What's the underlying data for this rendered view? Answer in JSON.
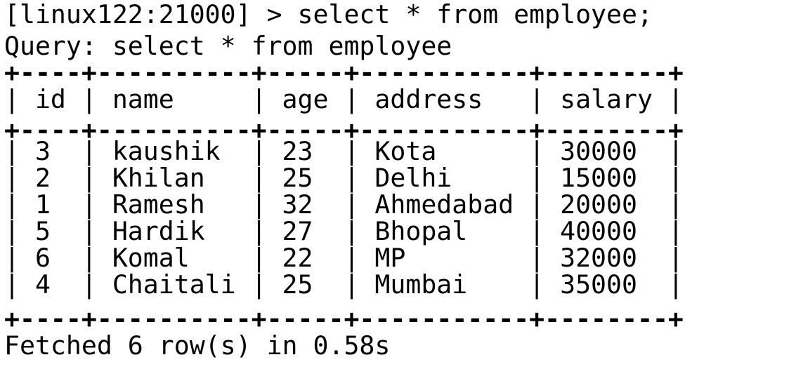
{
  "terminal": {
    "prompt": "[linux122:21000] > select * from employee;",
    "query_echo": "Query: select * from employee",
    "result": {
      "border": "+----+----------+-----+-----------+--------+",
      "header": "| id | name     | age | address   | salary |",
      "rows": [
        "| 3  | kaushik  | 23  | Kota      | 30000  |",
        "| 2  | Khilan   | 25  | Delhi     | 15000  |",
        "| 1  | Ramesh   | 32  | Ahmedabad | 20000  |",
        "| 5  | Hardik   | 27  | Bhopal    | 40000  |",
        "| 6  | Komal    | 22  | MP        | 32000  |",
        "| 4  | Chaitali | 25  | Mumbai    | 35000  |"
      ]
    },
    "footer": "Fetched 6 row(s) in 0.58s"
  }
}
